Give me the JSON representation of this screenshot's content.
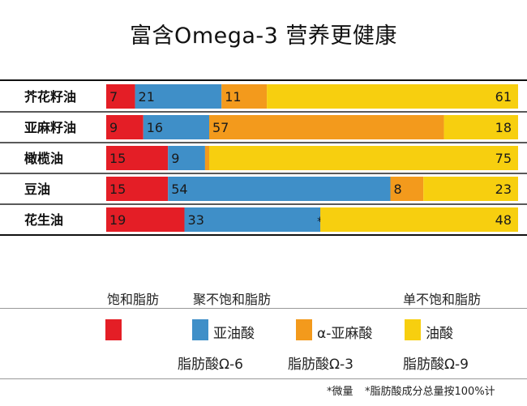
{
  "title": "富含Omega-3 营养更健康",
  "chart_data": {
    "type": "bar",
    "stacked": true,
    "orientation": "horizontal",
    "categories": [
      "芥花籽油",
      "亚麻籽油",
      "橄榄油",
      "豆油",
      "花生油"
    ],
    "series": [
      {
        "key": "saturated",
        "color": "#e41e26",
        "values": [
          7,
          9,
          15,
          15,
          19
        ]
      },
      {
        "key": "linoleic",
        "color": "#3f8fc8",
        "values": [
          21,
          16,
          9,
          54,
          33
        ]
      },
      {
        "key": "alpha_linolenic",
        "color": "#f39a1c",
        "values": [
          11,
          57,
          1,
          8,
          null
        ]
      },
      {
        "key": "oleic",
        "color": "#f7cf0f",
        "values": [
          61,
          18,
          75,
          23,
          48
        ]
      }
    ],
    "trace_marker": "*",
    "xlim": [
      0,
      100
    ]
  },
  "legend": {
    "group_saturated": "饱和脂肪",
    "group_poly": "聚不饱和脂肪",
    "group_mono": "单不饱和脂肪",
    "linoleic": "亚油酸",
    "alpha_linolenic": "α-亚麻酸",
    "oleic": "油酸",
    "omega6": "脂肪酸Ω-6",
    "omega3": "脂肪酸Ω-3",
    "omega9": "脂肪酸Ω-9"
  },
  "footnotes": {
    "trace": "*微量",
    "total": "*脂肪酸成分总量按100%计"
  }
}
